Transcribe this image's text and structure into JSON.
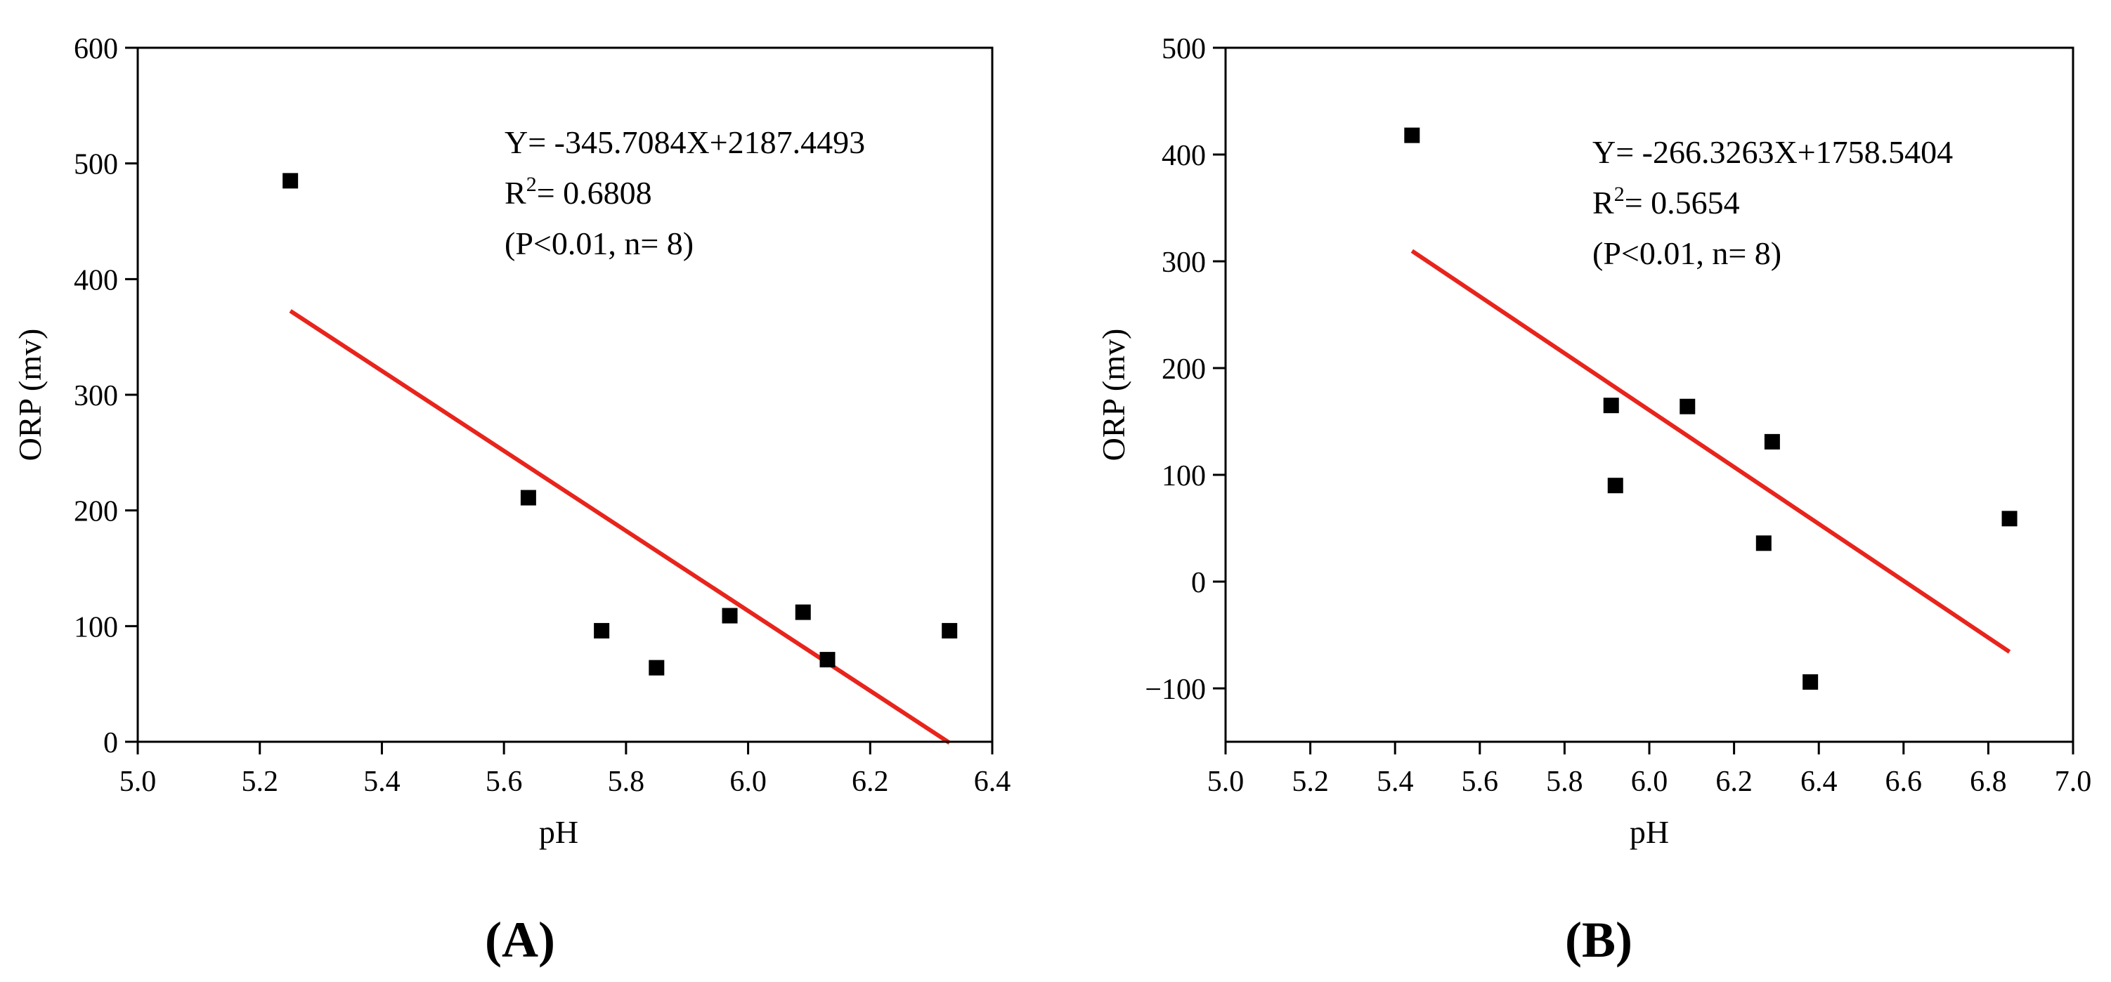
{
  "chart_data": [
    {
      "panel": "(A)",
      "type": "scatter",
      "xlabel": "pH",
      "ylabel": "ORP (mv)",
      "xlim": [
        5.0,
        6.4
      ],
      "ylim": [
        0,
        600
      ],
      "xticks": [
        5.0,
        5.2,
        5.4,
        5.6,
        5.8,
        6.0,
        6.2,
        6.4
      ],
      "xtick_labels": [
        "5.0",
        "5.2",
        "5.4",
        "5.6",
        "5.8",
        "6.0",
        "6.2",
        "6.4"
      ],
      "yticks": [
        0,
        100,
        200,
        300,
        400,
        500,
        600
      ],
      "ytick_labels": [
        "0",
        "100",
        "200",
        "300",
        "400",
        "500",
        "600"
      ],
      "grid": false,
      "points": [
        {
          "x": 5.25,
          "y": 485
        },
        {
          "x": 5.64,
          "y": 211
        },
        {
          "x": 5.76,
          "y": 96
        },
        {
          "x": 5.85,
          "y": 64
        },
        {
          "x": 5.97,
          "y": 109
        },
        {
          "x": 6.09,
          "y": 112
        },
        {
          "x": 6.13,
          "y": 71
        },
        {
          "x": 6.33,
          "y": 96
        }
      ],
      "fit": {
        "slope": -345.7084,
        "intercept": 2187.4493,
        "x_range": [
          5.25,
          6.33
        ],
        "color": "#e8241c"
      },
      "annotation": {
        "equation": "Y= -345.7084X+2187.4493",
        "r2_prefix": "R",
        "r2_sup": "2",
        "r2_value": "= 0.6808",
        "stats": "(P<0.01, n= 8)"
      }
    },
    {
      "panel": "(B)",
      "type": "scatter",
      "xlabel": "pH",
      "ylabel": "ORP (mv)",
      "xlim": [
        5.0,
        7.0
      ],
      "ylim": [
        -150,
        500
      ],
      "xticks": [
        5.0,
        5.2,
        5.4,
        5.6,
        5.8,
        6.0,
        6.2,
        6.4,
        6.6,
        6.8,
        7.0
      ],
      "xtick_labels": [
        "5.0",
        "5.2",
        "5.4",
        "5.6",
        "5.8",
        "6.0",
        "6.2",
        "6.4",
        "6.6",
        "6.8",
        "7.0"
      ],
      "yticks": [
        -100,
        0,
        100,
        200,
        300,
        400,
        500
      ],
      "ytick_labels": [
        "−100",
        "0",
        "100",
        "200",
        "300",
        "400",
        "500"
      ],
      "grid": false,
      "points": [
        {
          "x": 5.44,
          "y": 418
        },
        {
          "x": 5.91,
          "y": 165
        },
        {
          "x": 5.92,
          "y": 90
        },
        {
          "x": 6.09,
          "y": 164
        },
        {
          "x": 6.27,
          "y": 36
        },
        {
          "x": 6.29,
          "y": 131
        },
        {
          "x": 6.38,
          "y": -94
        },
        {
          "x": 6.85,
          "y": 59
        }
      ],
      "fit": {
        "slope": -266.3263,
        "intercept": 1758.5404,
        "x_range": [
          5.44,
          6.85
        ],
        "color": "#e8241c"
      },
      "annotation": {
        "equation": "Y= -266.3263X+1758.5404",
        "r2_prefix": "R",
        "r2_sup": "2",
        "r2_value": "= 0.5654",
        "stats": "(P<0.01, n= 8)"
      }
    }
  ]
}
